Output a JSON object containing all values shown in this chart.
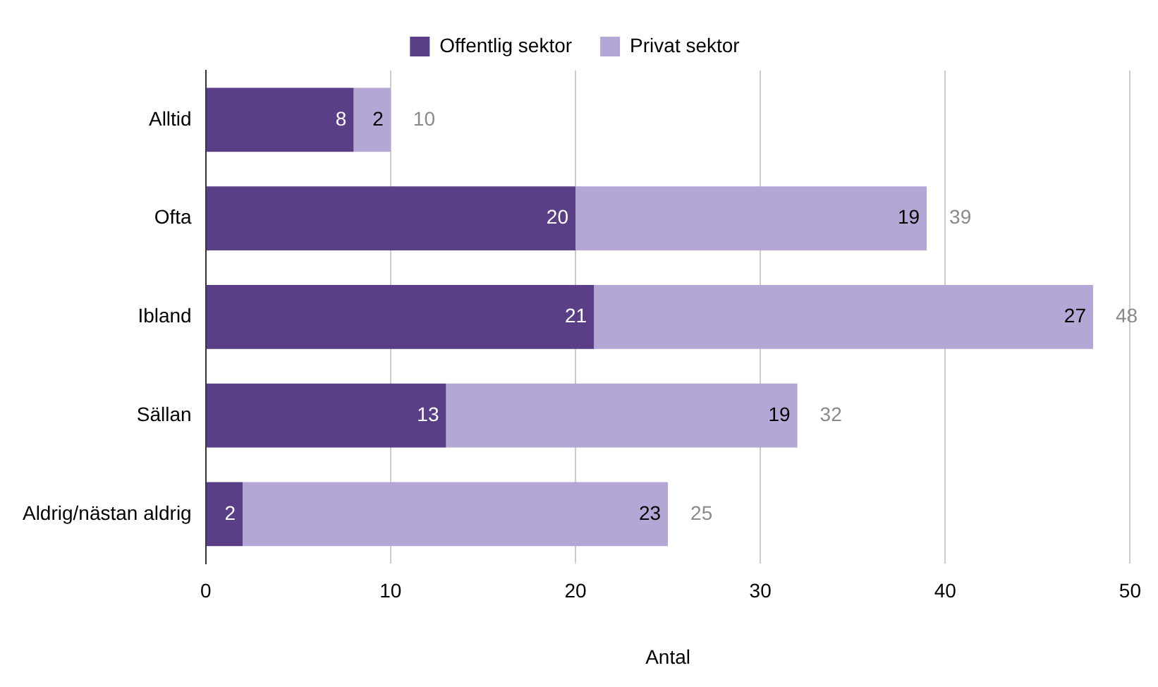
{
  "chart_data": {
    "type": "bar",
    "orientation": "horizontal",
    "stacked": true,
    "xlabel": "Antal",
    "categories": [
      "Alltid",
      "Ofta",
      "Ibland",
      "Sällan",
      "Aldrig/nästan aldrig"
    ],
    "series": [
      {
        "name": "Offentlig sektor",
        "color": "#5b3f86",
        "values": [
          8,
          20,
          21,
          13,
          2
        ]
      },
      {
        "name": "Privat sektor",
        "color": "#b4a7d6",
        "values": [
          2,
          19,
          27,
          19,
          23
        ]
      }
    ],
    "totals": [
      "10",
      "39",
      "48",
      "32",
      "25"
    ],
    "data_labels": true,
    "xlim": [
      0,
      50
    ],
    "xticks": [
      0,
      10,
      20,
      30,
      40,
      50
    ],
    "grid": "x",
    "legend": "top"
  }
}
